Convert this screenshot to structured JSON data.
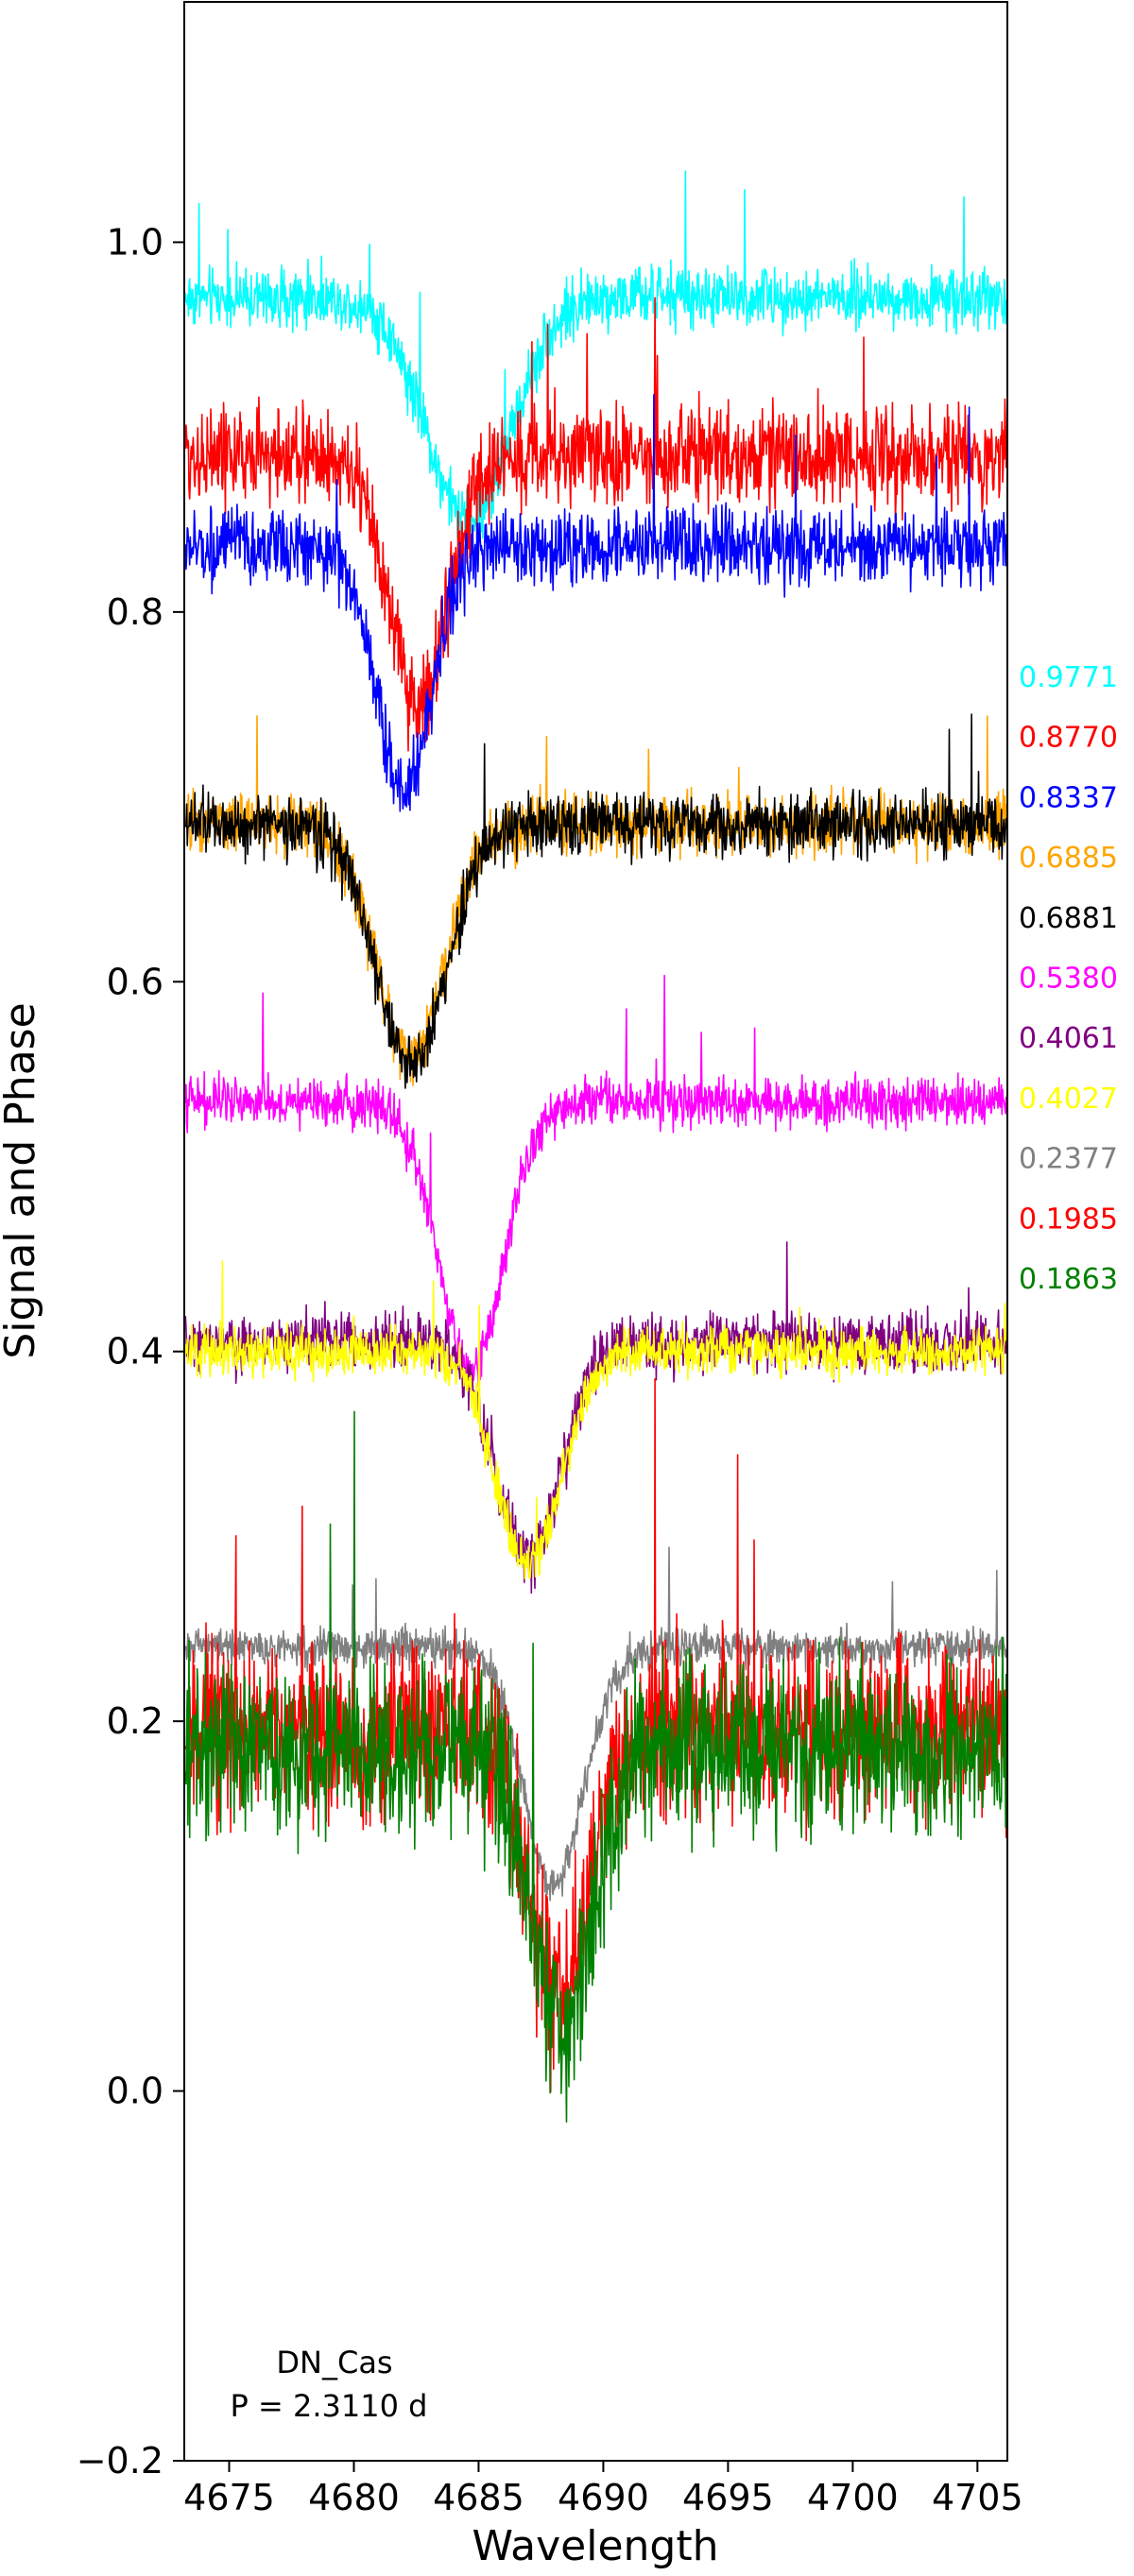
{
  "chart_data": {
    "type": "line",
    "title": "",
    "xlabel": "Wavelength",
    "ylabel": "Signal and Phase",
    "xlim": [
      4673.2,
      4706.2
    ],
    "ylim": [
      -0.2,
      1.13
    ],
    "xticks": [
      4675,
      4680,
      4685,
      4690,
      4695,
      4700,
      4705
    ],
    "yticks": [
      -0.2,
      0.0,
      0.2,
      0.4,
      0.6,
      0.8,
      1.0
    ],
    "ytick_labels": [
      "−0.2",
      "0.0",
      "0.2",
      "0.4",
      "0.6",
      "0.8",
      "1.0"
    ],
    "grid": false,
    "annotation": {
      "object": "DN_Cas",
      "period": "P = 2.3110 d"
    },
    "series": [
      {
        "name": "0.9771",
        "color": "#00ffff",
        "baseline": 0.97,
        "dip_center": 4684.6,
        "dip_depth": 0.12,
        "dip_width": 1.7,
        "noise": 0.012
      },
      {
        "name": "0.8770",
        "color": "#ff0000",
        "baseline": 0.885,
        "dip_center": 4682.6,
        "dip_depth": 0.135,
        "dip_width": 1.2,
        "noise": 0.02
      },
      {
        "name": "0.8337",
        "color": "#0000ff",
        "baseline": 0.835,
        "dip_center": 4682.0,
        "dip_depth": 0.13,
        "dip_width": 1.1,
        "noise": 0.015
      },
      {
        "name": "0.6885",
        "color": "#ffa500",
        "baseline": 0.685,
        "dip_center": 4682.3,
        "dip_depth": 0.125,
        "dip_width": 1.4,
        "noise": 0.012
      },
      {
        "name": "0.6881",
        "color": "#000000",
        "baseline": 0.685,
        "dip_center": 4682.3,
        "dip_depth": 0.13,
        "dip_width": 1.4,
        "noise": 0.013
      },
      {
        "name": "0.5380",
        "color": "#ff00ff",
        "baseline": 0.535,
        "dip_center": 4684.7,
        "dip_depth": 0.145,
        "dip_width": 1.3,
        "noise": 0.01
      },
      {
        "name": "0.4061",
        "color": "#800080",
        "baseline": 0.405,
        "dip_center": 4687.0,
        "dip_depth": 0.115,
        "dip_width": 1.3,
        "noise": 0.012
      },
      {
        "name": "0.4027",
        "color": "#ffff00",
        "baseline": 0.4,
        "dip_center": 4687.0,
        "dip_depth": 0.115,
        "dip_width": 1.3,
        "noise": 0.01
      },
      {
        "name": "0.2377",
        "color": "#808080",
        "baseline": 0.24,
        "dip_center": 4688.0,
        "dip_depth": 0.13,
        "dip_width": 1.2,
        "noise": 0.008
      },
      {
        "name": "0.1985",
        "color": "#ff0000",
        "baseline": 0.195,
        "dip_center": 4688.2,
        "dip_depth": 0.14,
        "dip_width": 1.2,
        "noise": 0.035
      },
      {
        "name": "0.1863",
        "color": "#008000",
        "baseline": 0.185,
        "dip_center": 4688.3,
        "dip_depth": 0.15,
        "dip_width": 1.2,
        "noise": 0.035
      }
    ]
  }
}
